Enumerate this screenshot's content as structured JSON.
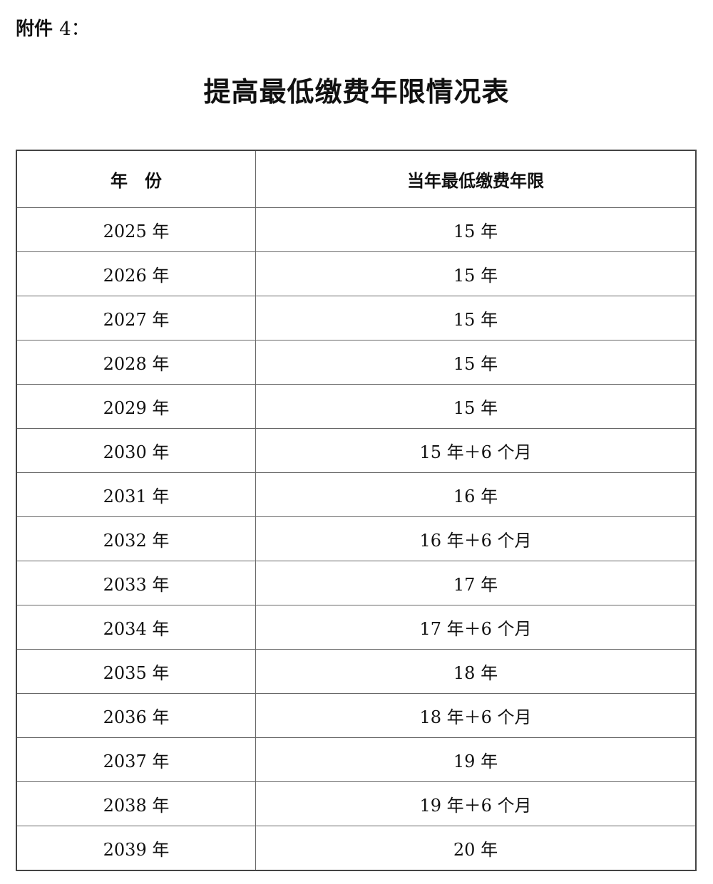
{
  "attachment_label": "附件",
  "attachment_number": "4：",
  "title": "提高最低缴费年限情况表",
  "table": {
    "headers": [
      "年　份",
      "当年最低缴费年限"
    ],
    "rows": [
      [
        "2025 年",
        "15 年"
      ],
      [
        "2026 年",
        "15 年"
      ],
      [
        "2027 年",
        "15 年"
      ],
      [
        "2028 年",
        "15 年"
      ],
      [
        "2029 年",
        "15 年"
      ],
      [
        "2030 年",
        "15 年＋6 个月"
      ],
      [
        "2031 年",
        "16 年"
      ],
      [
        "2032 年",
        "16 年＋6 个月"
      ],
      [
        "2033 年",
        "17 年"
      ],
      [
        "2034 年",
        "17 年＋6 个月"
      ],
      [
        "2035 年",
        "18 年"
      ],
      [
        "2036 年",
        "18 年＋6 个月"
      ],
      [
        "2037 年",
        "19 年"
      ],
      [
        "2038 年",
        "19 年＋6 个月"
      ],
      [
        "2039 年",
        "20 年"
      ]
    ]
  }
}
